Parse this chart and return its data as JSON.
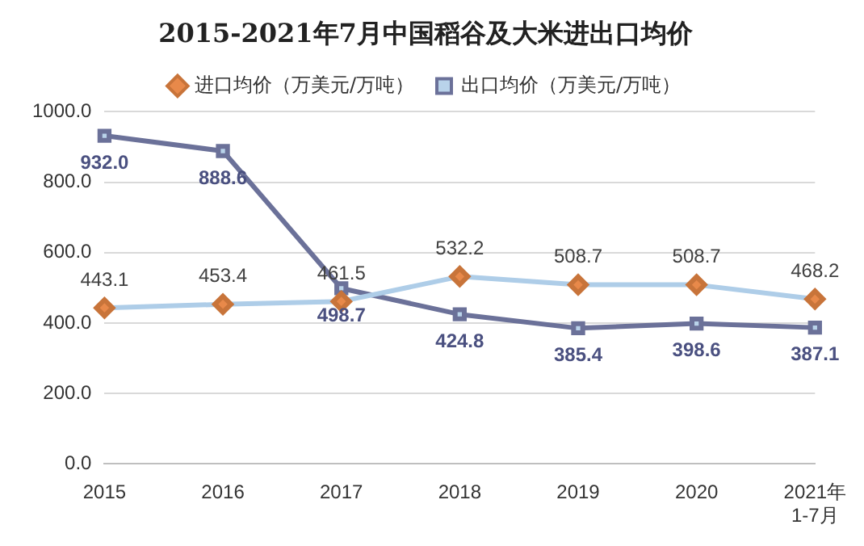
{
  "chart_data": {
    "type": "line",
    "title": "2015-2021年7月中国稻谷及大米进出口均价",
    "categories": [
      "2015",
      "2016",
      "2017",
      "2018",
      "2019",
      "2020",
      "2021年\n1-7月"
    ],
    "series": [
      {
        "name": "进口均价（万美元/万吨）",
        "color": "#aecde8",
        "marker": "diamond",
        "values": [
          443.1,
          453.4,
          461.5,
          532.2,
          508.7,
          508.7,
          468.2
        ],
        "value_labels": [
          "443.1",
          "453.4",
          "461.5",
          "532.2",
          "508.7",
          "508.7",
          "468.2"
        ]
      },
      {
        "name": "出口均价（万美元/万吨）",
        "color": "#6b7199",
        "marker": "square",
        "values": [
          932.0,
          888.6,
          498.7,
          424.8,
          385.4,
          398.6,
          387.1
        ],
        "value_labels": [
          "932.0",
          "888.6",
          "498.7",
          "424.8",
          "385.4",
          "398.6",
          "387.1"
        ]
      }
    ],
    "ylim": [
      0,
      1000
    ],
    "yticks": [
      {
        "value": 0,
        "label": "0.0"
      },
      {
        "value": 200,
        "label": "200.0"
      },
      {
        "value": 400,
        "label": "400.0"
      },
      {
        "value": 600,
        "label": "600.0"
      },
      {
        "value": 800,
        "label": "800.0"
      },
      {
        "value": 1000,
        "label": "1000.0"
      }
    ],
    "grid": "y",
    "legend": "top"
  }
}
